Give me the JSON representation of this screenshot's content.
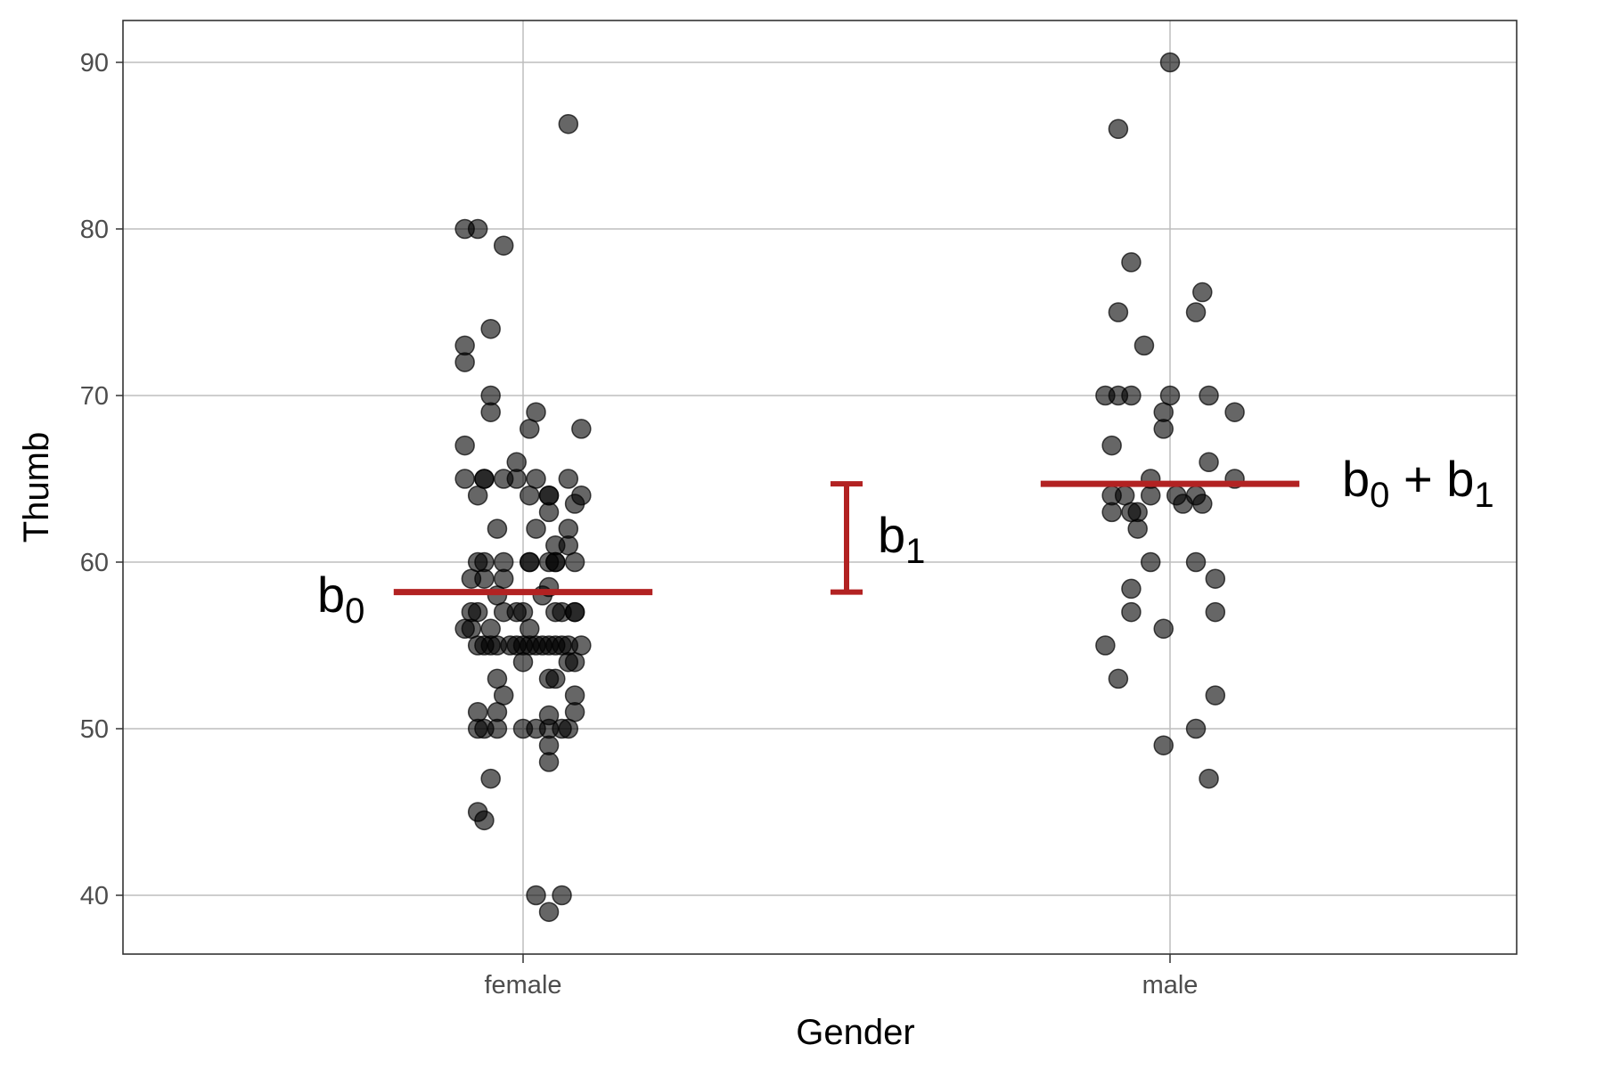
{
  "chart_data": {
    "type": "scatter",
    "title": "",
    "xlabel": "Gender",
    "ylabel": "Thumb",
    "categories": [
      "female",
      "male"
    ],
    "yticks": [
      "40",
      "50",
      "60",
      "70",
      "80",
      "90"
    ],
    "ylim": [
      36.5,
      92.5
    ],
    "grid": true,
    "colors": {
      "points": "#000000",
      "model": "#b22222",
      "grid": "#bdbdbd"
    },
    "jitter_note_units": "x is category index + jitter (category units)",
    "series": [
      {
        "name": "female",
        "category": 0,
        "points": [
          [
            -0.09,
            80
          ],
          [
            -0.07,
            80
          ],
          [
            -0.03,
            79
          ],
          [
            -0.05,
            74
          ],
          [
            -0.09,
            73
          ],
          [
            -0.09,
            72
          ],
          [
            -0.05,
            70
          ],
          [
            -0.05,
            69
          ],
          [
            0.02,
            69
          ],
          [
            0.01,
            68
          ],
          [
            0.09,
            68
          ],
          [
            -0.09,
            67
          ],
          [
            -0.01,
            66
          ],
          [
            -0.09,
            65
          ],
          [
            -0.06,
            65
          ],
          [
            -0.06,
            65
          ],
          [
            -0.03,
            65
          ],
          [
            -0.01,
            65
          ],
          [
            0.02,
            65
          ],
          [
            0.07,
            65
          ],
          [
            -0.07,
            64
          ],
          [
            0.01,
            64
          ],
          [
            0.04,
            64
          ],
          [
            0.04,
            64
          ],
          [
            0.09,
            64
          ],
          [
            0.08,
            63.5
          ],
          [
            0.04,
            63
          ],
          [
            -0.04,
            62
          ],
          [
            0.02,
            62
          ],
          [
            0.07,
            62
          ],
          [
            0.05,
            61
          ],
          [
            0.07,
            61
          ],
          [
            -0.07,
            60
          ],
          [
            -0.06,
            60
          ],
          [
            -0.03,
            60
          ],
          [
            0.01,
            60
          ],
          [
            0.01,
            60
          ],
          [
            0.04,
            60
          ],
          [
            0.05,
            60
          ],
          [
            0.05,
            60
          ],
          [
            0.08,
            60
          ],
          [
            -0.08,
            59
          ],
          [
            -0.06,
            59
          ],
          [
            -0.03,
            59
          ],
          [
            0.03,
            58
          ],
          [
            0.04,
            58.5
          ],
          [
            -0.04,
            58
          ],
          [
            -0.08,
            57
          ],
          [
            -0.07,
            57
          ],
          [
            -0.03,
            57
          ],
          [
            -0.01,
            57
          ],
          [
            0,
            57
          ],
          [
            0.05,
            57
          ],
          [
            0.06,
            57
          ],
          [
            0.08,
            57
          ],
          [
            0.08,
            57
          ],
          [
            -0.09,
            56
          ],
          [
            -0.08,
            56
          ],
          [
            -0.05,
            56
          ],
          [
            0.01,
            56
          ],
          [
            -0.07,
            55
          ],
          [
            -0.06,
            55
          ],
          [
            -0.05,
            55
          ],
          [
            -0.04,
            55
          ],
          [
            -0.02,
            55
          ],
          [
            -0.01,
            55
          ],
          [
            0,
            55
          ],
          [
            0.01,
            55
          ],
          [
            0.02,
            55
          ],
          [
            0.03,
            55
          ],
          [
            0.04,
            55
          ],
          [
            0.05,
            55
          ],
          [
            0.06,
            55
          ],
          [
            0.07,
            55
          ],
          [
            0.09,
            55
          ],
          [
            0,
            54
          ],
          [
            0.07,
            54
          ],
          [
            0.08,
            54
          ],
          [
            -0.04,
            53
          ],
          [
            0.04,
            53
          ],
          [
            0.05,
            53
          ],
          [
            -0.03,
            52
          ],
          [
            0.08,
            52
          ],
          [
            -0.07,
            51
          ],
          [
            -0.04,
            51
          ],
          [
            0.04,
            50.8
          ],
          [
            0.08,
            51
          ],
          [
            -0.07,
            50
          ],
          [
            -0.06,
            50
          ],
          [
            -0.04,
            50
          ],
          [
            0,
            50
          ],
          [
            0.02,
            50
          ],
          [
            0.04,
            50
          ],
          [
            0.06,
            50
          ],
          [
            0.07,
            50
          ],
          [
            0.04,
            49
          ],
          [
            0.04,
            48
          ],
          [
            -0.05,
            47
          ],
          [
            -0.07,
            45
          ],
          [
            -0.06,
            44.5
          ],
          [
            0.02,
            40
          ],
          [
            0.06,
            40
          ],
          [
            0.04,
            39
          ],
          [
            0.07,
            86.3
          ]
        ]
      },
      {
        "name": "male",
        "category": 1,
        "points": [
          [
            0,
            90
          ],
          [
            -0.08,
            86
          ],
          [
            -0.06,
            78
          ],
          [
            0.05,
            76.2
          ],
          [
            -0.08,
            75
          ],
          [
            0.04,
            75
          ],
          [
            -0.04,
            73
          ],
          [
            -0.1,
            70
          ],
          [
            -0.08,
            70
          ],
          [
            -0.06,
            70
          ],
          [
            0,
            70
          ],
          [
            0.06,
            70
          ],
          [
            -0.01,
            69
          ],
          [
            0.1,
            69
          ],
          [
            -0.01,
            68
          ],
          [
            -0.09,
            67
          ],
          [
            0.06,
            66
          ],
          [
            -0.03,
            65
          ],
          [
            0.1,
            65
          ],
          [
            -0.09,
            64
          ],
          [
            -0.07,
            64
          ],
          [
            -0.03,
            64
          ],
          [
            0.01,
            64
          ],
          [
            0.04,
            64
          ],
          [
            -0.09,
            63
          ],
          [
            -0.06,
            63
          ],
          [
            -0.05,
            63
          ],
          [
            0.02,
            63.5
          ],
          [
            0.05,
            63.5
          ],
          [
            -0.05,
            62
          ],
          [
            -0.03,
            60
          ],
          [
            0.04,
            60
          ],
          [
            0.07,
            59
          ],
          [
            -0.06,
            58.4
          ],
          [
            -0.06,
            57
          ],
          [
            0.07,
            57
          ],
          [
            -0.01,
            56
          ],
          [
            -0.1,
            55
          ],
          [
            -0.08,
            53
          ],
          [
            0.07,
            52
          ],
          [
            0.04,
            50
          ],
          [
            -0.01,
            49
          ],
          [
            0.06,
            47
          ]
        ]
      }
    ],
    "model": {
      "b0": 58.2,
      "b0_plus_b1": 64.7,
      "labels": {
        "b0": "b",
        "b0_sub": "0",
        "b1": "b",
        "b1_sub": "1",
        "sum": "b",
        "sum_sub0": "0",
        "sum_plus": " + b",
        "sum_sub1": "1"
      }
    }
  }
}
